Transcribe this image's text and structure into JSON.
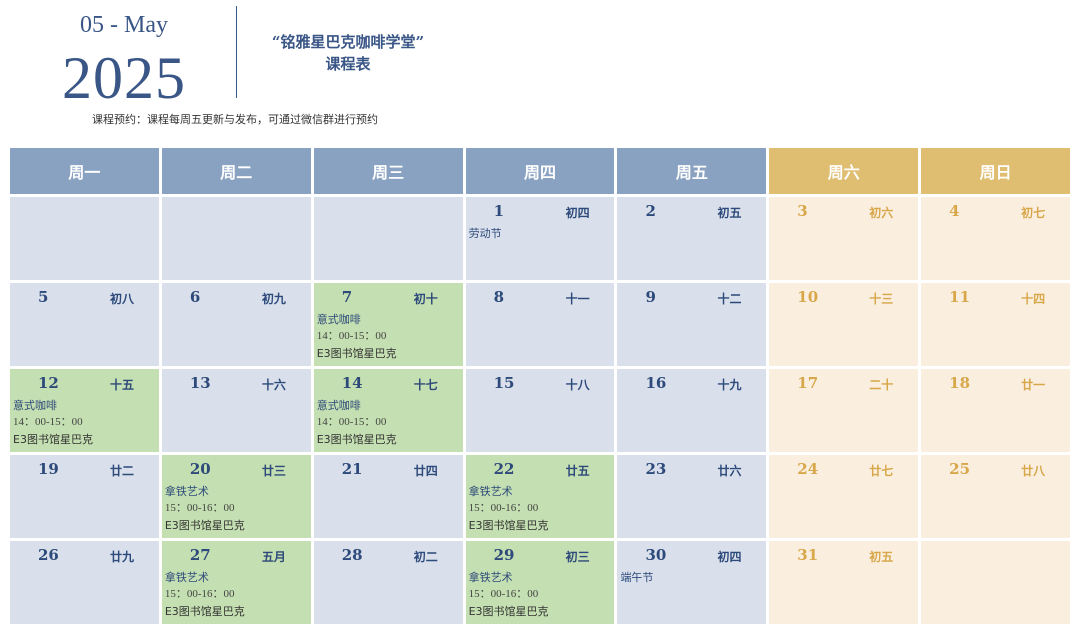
{
  "header": {
    "month": "05 - May",
    "year": "2025",
    "title_line1": "“铭雅星巴克咖啡学堂”",
    "title_line2": "课程表",
    "note": "课程预约：课程每周五更新与发布，可通过微信群进行预约"
  },
  "weekdays": [
    "周一",
    "周二",
    "周三",
    "周四",
    "周五",
    "周六",
    "周日"
  ],
  "colors": {
    "weekday_header": "#8aa2c2",
    "weekend_header": "#dfbd71",
    "weekday_cell": "#d9e0ec",
    "class_cell": "#c4dfb1",
    "weekend_cell": "#faeedf",
    "text_blue": "#2d4a7a",
    "text_gold": "#d8a74a"
  },
  "weeks": [
    [
      {
        "day": "",
        "lunar": "",
        "kind": "blue"
      },
      {
        "day": "",
        "lunar": "",
        "kind": "blue"
      },
      {
        "day": "",
        "lunar": "",
        "kind": "blue"
      },
      {
        "day": "1",
        "lunar": "初四",
        "kind": "blue",
        "event": {
          "title": "劳动节"
        }
      },
      {
        "day": "2",
        "lunar": "初五",
        "kind": "blue"
      },
      {
        "day": "3",
        "lunar": "初六",
        "kind": "beige"
      },
      {
        "day": "4",
        "lunar": "初七",
        "kind": "beige"
      }
    ],
    [
      {
        "day": "5",
        "lunar": "初八",
        "kind": "blue"
      },
      {
        "day": "6",
        "lunar": "初九",
        "kind": "blue"
      },
      {
        "day": "7",
        "lunar": "初十",
        "kind": "green",
        "event": {
          "title": "意式咖啡",
          "time": "14：00-15：00",
          "place": "E3图书馆星巴克"
        }
      },
      {
        "day": "8",
        "lunar": "十一",
        "kind": "blue"
      },
      {
        "day": "9",
        "lunar": "十二",
        "kind": "blue"
      },
      {
        "day": "10",
        "lunar": "十三",
        "kind": "beige"
      },
      {
        "day": "11",
        "lunar": "十四",
        "kind": "beige"
      }
    ],
    [
      {
        "day": "12",
        "lunar": "十五",
        "kind": "green",
        "event": {
          "title": "意式咖啡",
          "time": "14：00-15：00",
          "place": "E3图书馆星巴克"
        }
      },
      {
        "day": "13",
        "lunar": "十六",
        "kind": "blue"
      },
      {
        "day": "14",
        "lunar": "十七",
        "kind": "green",
        "event": {
          "title": "意式咖啡",
          "time": "14：00-15：00",
          "place": "E3图书馆星巴克"
        }
      },
      {
        "day": "15",
        "lunar": "十八",
        "kind": "blue"
      },
      {
        "day": "16",
        "lunar": "十九",
        "kind": "blue"
      },
      {
        "day": "17",
        "lunar": "二十",
        "kind": "beige"
      },
      {
        "day": "18",
        "lunar": "廿一",
        "kind": "beige"
      }
    ],
    [
      {
        "day": "19",
        "lunar": "廿二",
        "kind": "blue"
      },
      {
        "day": "20",
        "lunar": "廿三",
        "kind": "green",
        "event": {
          "title": "拿铁艺术",
          "time": "15：00-16：00",
          "place": "E3图书馆星巴克"
        }
      },
      {
        "day": "21",
        "lunar": "廿四",
        "kind": "blue"
      },
      {
        "day": "22",
        "lunar": "廿五",
        "kind": "green",
        "event": {
          "title": "拿铁艺术",
          "time": "15：00-16：00",
          "place": "E3图书馆星巴克"
        }
      },
      {
        "day": "23",
        "lunar": "廿六",
        "kind": "blue"
      },
      {
        "day": "24",
        "lunar": "廿七",
        "kind": "beige"
      },
      {
        "day": "25",
        "lunar": "廿八",
        "kind": "beige"
      }
    ],
    [
      {
        "day": "26",
        "lunar": "廿九",
        "kind": "blue"
      },
      {
        "day": "27",
        "lunar": "五月",
        "kind": "green",
        "event": {
          "title": "拿铁艺术",
          "time": "15：00-16：00",
          "place": "E3图书馆星巴克"
        }
      },
      {
        "day": "28",
        "lunar": "初二",
        "kind": "blue"
      },
      {
        "day": "29",
        "lunar": "初三",
        "kind": "green",
        "event": {
          "title": "拿铁艺术",
          "time": "15：00-16：00",
          "place": "E3图书馆星巴克"
        }
      },
      {
        "day": "30",
        "lunar": "初四",
        "kind": "blue",
        "event": {
          "title": "端午节"
        }
      },
      {
        "day": "31",
        "lunar": "初五",
        "kind": "beige"
      },
      {
        "day": "",
        "lunar": "",
        "kind": "beige"
      }
    ]
  ]
}
